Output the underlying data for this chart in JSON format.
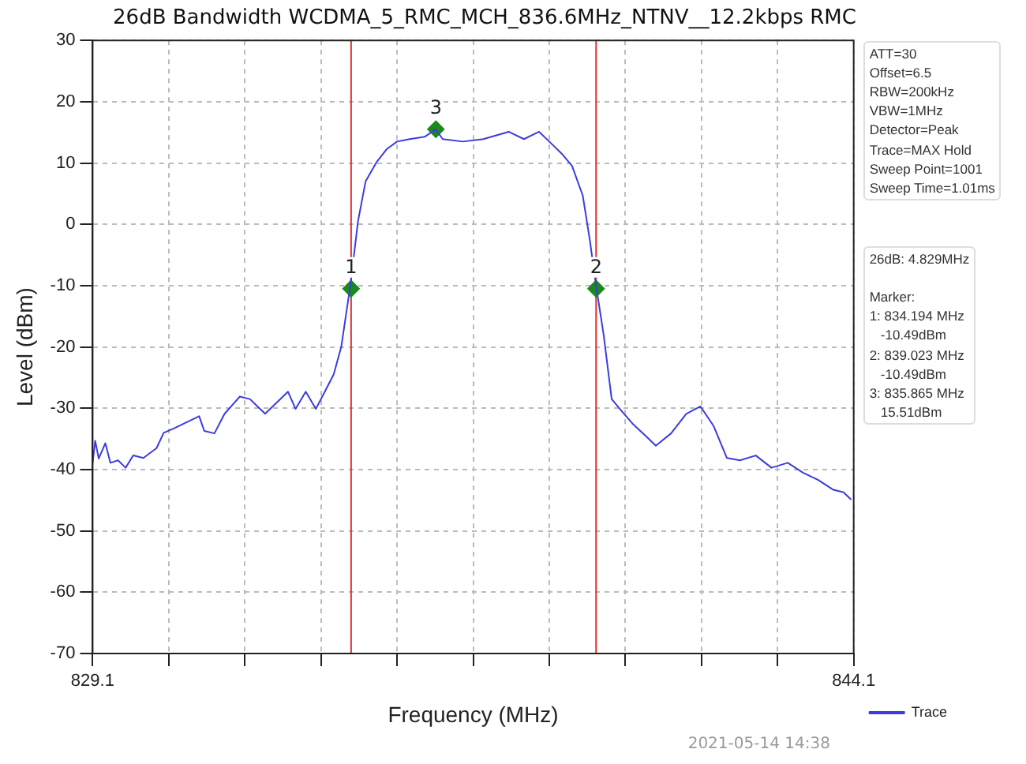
{
  "chart_data": {
    "type": "line",
    "title": "26dB Bandwidth WCDMA_5_RMC_MCH_836.6MHz_NTNV__12.2kbps RMC",
    "xlabel": "Frequency (MHz)",
    "ylabel": "Level (dBm)",
    "xlim": [
      829.1,
      844.1
    ],
    "xticks": [
      829.1,
      {
        "value": 830.6,
        "label": null
      },
      {
        "value": 832.1,
        "label": null
      },
      {
        "value": 833.6,
        "label": null
      },
      {
        "value": 835.1,
        "label": null
      },
      {
        "value": 836.6,
        "label": null
      },
      {
        "value": 838.1,
        "label": null
      },
      {
        "value": 839.6,
        "label": null
      },
      {
        "value": 841.1,
        "label": null
      },
      {
        "value": 842.6,
        "label": null
      },
      844.1
    ],
    "ylim": [
      -70,
      30
    ],
    "yticks": [
      -70,
      -60,
      -50,
      -40,
      -30,
      -20,
      -10,
      0,
      10,
      20,
      30
    ],
    "grid": true,
    "legend": "bottom right",
    "marker": "none",
    "line_style": "solid",
    "series": [
      {
        "name": "Trace",
        "type": "line",
        "color": "#3c3ce0",
        "x": [
          829.1,
          829.15,
          829.22,
          829.35,
          829.45,
          829.6,
          829.75,
          829.9,
          830.1,
          830.36,
          830.5,
          830.7,
          830.9,
          831.2,
          831.3,
          831.5,
          831.7,
          832.0,
          832.2,
          832.5,
          832.7,
          832.95,
          833.1,
          833.3,
          833.5,
          833.7,
          833.85,
          834.0,
          834.18,
          834.33,
          834.48,
          834.7,
          834.9,
          835.1,
          835.35,
          835.65,
          835.86,
          836.0,
          836.4,
          836.8,
          837.3,
          837.6,
          837.9,
          838.1,
          838.35,
          838.55,
          838.76,
          838.9,
          839.02,
          839.17,
          839.33,
          839.53,
          839.74,
          840.0,
          840.2,
          840.5,
          840.8,
          841.08,
          841.34,
          841.6,
          841.86,
          842.17,
          842.48,
          842.8,
          843.1,
          843.4,
          843.7,
          843.9,
          844.05
        ],
        "values": [
          -38.9,
          -35.3,
          -38.2,
          -35.7,
          -38.9,
          -38.5,
          -39.7,
          -37.7,
          -38.1,
          -36.5,
          -34.0,
          -33.3,
          -32.5,
          -31.3,
          -33.7,
          -34.1,
          -30.9,
          -28.1,
          -28.5,
          -30.9,
          -29.3,
          -27.3,
          -30.1,
          -27.3,
          -30.1,
          -26.9,
          -24.5,
          -20.0,
          -9.9,
          0.5,
          7.0,
          10.2,
          12.3,
          13.5,
          13.9,
          14.3,
          15.5,
          13.9,
          13.5,
          13.9,
          15.1,
          13.9,
          15.1,
          13.5,
          11.5,
          9.5,
          4.7,
          -2.6,
          -9.9,
          -17.9,
          -28.5,
          -30.5,
          -32.5,
          -34.5,
          -36.1,
          -34.1,
          -30.9,
          -29.7,
          -32.9,
          -38.1,
          -38.5,
          -37.7,
          -39.7,
          -38.9,
          -40.5,
          -41.7,
          -43.3,
          -43.7,
          -44.9
        ]
      },
      {
        "type": "scatter",
        "marker": "diamond",
        "color": "#1a8a1a",
        "x": [
          834.194,
          839.023,
          835.865
        ],
        "values": [
          -10.49,
          -10.49,
          15.51
        ]
      }
    ],
    "ref_lines": [
      {
        "axis": "x",
        "value": 834.194,
        "color": "#e03030"
      },
      {
        "axis": "x",
        "value": 839.023,
        "color": "#e03030"
      }
    ],
    "annotations": [
      {
        "text": "1",
        "x": 834.194,
        "y": -10.49
      },
      {
        "text": "2",
        "x": 839.023,
        "y": -10.49
      },
      {
        "text": "3",
        "x": 835.865,
        "y": 15.51
      },
      "ATT=30\nOffset=6.5\nRBW=200kHz\nVBW=1MHz\nDetector=Peak\nTrace=MAX Hold\nSweep Point=1001\nSweep Time=1.01ms",
      "26dB: 4.829MHz\n\nMarker:\n1: 834.194 MHz\n   -10.49dBm\n2: 839.023 MHz\n   -10.49dBm\n3: 835.865 MHz\n   15.51dBm",
      "2021-05-14 14:38"
    ]
  }
}
